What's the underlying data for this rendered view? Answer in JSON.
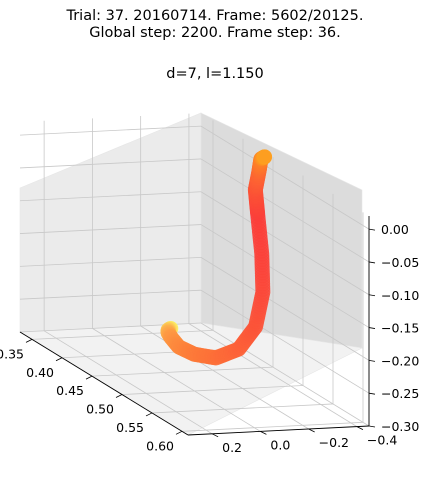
{
  "figure": {
    "title_line1": "Trial: 37. 20160714. Frame: 5602/20125.",
    "title_line2": "Global step: 2200. Frame step: 36.",
    "subplot_title": "d=7, l=1.150"
  },
  "chart_data": {
    "type": "scatter",
    "projection": "3d",
    "x_axis_ticks": [
      "0.35",
      "0.40",
      "0.45",
      "0.50",
      "0.55",
      "0.60"
    ],
    "y_axis_ticks": [
      "−0.4",
      "−0.2",
      "0.0",
      "0.2"
    ],
    "z_axis_ticks": [
      "0.00",
      "−0.05",
      "−0.10",
      "−0.15",
      "−0.20",
      "−0.25",
      "−0.30"
    ],
    "xlim": [
      0.33,
      0.61
    ],
    "ylim": [
      -0.45,
      0.3
    ],
    "zlim": [
      -0.3,
      0.02
    ],
    "grid": true,
    "colormap": "yellow-orange-red",
    "series": [
      {
        "marker_colors": [
          "#fbf36a",
          "#fdd05a",
          "#fdb24e",
          "#fe9a44",
          "#fd8a3e",
          "#fd7c3a",
          "#fd7038",
          "#fd6338",
          "#fc5539",
          "#fb4a3a",
          "#fb423a",
          "#fb3d39",
          "#fc5236",
          "#fd6932",
          "#fe8128",
          "#fea020"
        ],
        "x": [
          0.34,
          0.368,
          0.4,
          0.437,
          0.478,
          0.52,
          0.56,
          0.59,
          0.602,
          0.59,
          0.56,
          0.525,
          0.497,
          0.475,
          0.45,
          0.44
        ],
        "y": [
          -0.3,
          -0.22,
          -0.14,
          -0.06,
          0.01,
          0.05,
          0.06,
          0.04,
          0.0,
          -0.06,
          -0.13,
          -0.2,
          -0.26,
          -0.33,
          -0.4,
          -0.44
        ],
        "z": [
          -0.3,
          -0.285,
          -0.27,
          -0.255,
          -0.245,
          -0.232,
          -0.215,
          -0.185,
          -0.145,
          -0.1,
          -0.06,
          -0.02,
          0.0,
          0.015,
          0.018,
          0.015
        ]
      }
    ]
  }
}
